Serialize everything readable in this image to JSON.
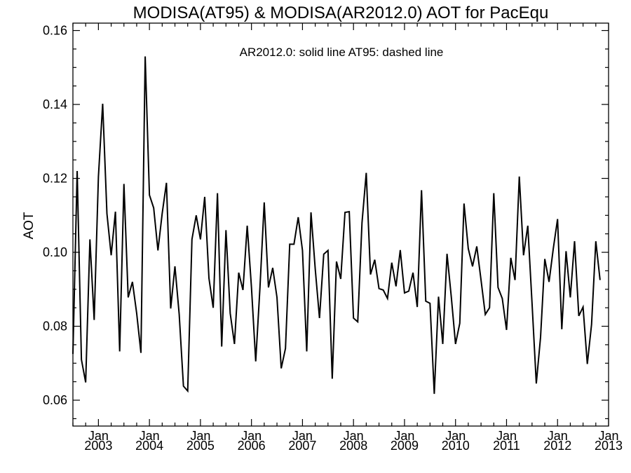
{
  "chart_data": {
    "type": "line",
    "title": "MODISA(AT95) & MODISA(AR2012.0)  AOT for PacEqu",
    "annotation": "AR2012.0: solid line   AT95: dashed line",
    "xlabel": "",
    "ylabel": "AOT",
    "ylim": [
      0.053,
      0.162
    ],
    "yticks": [
      0.06,
      0.08,
      0.1,
      0.12,
      0.14,
      0.16
    ],
    "ytick_labels": [
      "0.06",
      "0.08",
      "0.10",
      "0.12",
      "0.14",
      "0.16"
    ],
    "x_start": "2002-07",
    "xlim": [
      "2002-07",
      "2013-01"
    ],
    "xticks": [
      {
        "month": "Jan",
        "year": "2003",
        "date": "2003-01"
      },
      {
        "month": "Jan",
        "year": "2004",
        "date": "2004-01"
      },
      {
        "month": "Jan",
        "year": "2005",
        "date": "2005-01"
      },
      {
        "month": "Jan",
        "year": "2006",
        "date": "2006-01"
      },
      {
        "month": "Jan",
        "year": "2007",
        "date": "2007-01"
      },
      {
        "month": "Jan",
        "year": "2008",
        "date": "2008-01"
      },
      {
        "month": "Jan",
        "year": "2009",
        "date": "2009-01"
      },
      {
        "month": "Jan",
        "year": "2010",
        "date": "2010-01"
      },
      {
        "month": "Jan",
        "year": "2011",
        "date": "2011-01"
      },
      {
        "month": "Jan",
        "year": "2012",
        "date": "2012-01"
      },
      {
        "month": "Jan",
        "year": "2013",
        "date": "2013-01"
      }
    ],
    "grid": false,
    "series": [
      {
        "style": "solid",
        "color": "#000000",
        "values": [
          0.0725,
          0.122,
          0.071,
          0.0648,
          0.1035,
          0.0817,
          0.1205,
          0.1402,
          0.1105,
          0.0992,
          0.111,
          0.0732,
          0.1185,
          0.0878,
          0.092,
          0.0835,
          0.0728,
          0.153,
          0.1155,
          0.112,
          0.1005,
          0.1105,
          0.1188,
          0.0848,
          0.0962,
          0.0832,
          0.0638,
          0.0625,
          0.1035,
          0.11,
          0.1035,
          0.115,
          0.093,
          0.085,
          0.116,
          0.0745,
          0.106,
          0.0835,
          0.0752,
          0.0945,
          0.0898,
          0.1072,
          0.0905,
          0.0705,
          0.0905,
          0.1135,
          0.0905,
          0.0958,
          0.0878,
          0.0686,
          0.074,
          0.1022,
          0.1022,
          0.1095,
          0.1005,
          0.0732,
          0.1108,
          0.0955,
          0.0822,
          0.0995,
          0.1005,
          0.0658,
          0.0975,
          0.0928,
          0.1108,
          0.111,
          0.0822,
          0.0812,
          0.108,
          0.1215,
          0.094,
          0.098,
          0.0902,
          0.0898,
          0.0875,
          0.0972,
          0.0908,
          0.1006,
          0.089,
          0.0895,
          0.0945,
          0.0852,
          0.1168,
          0.0868,
          0.0862,
          0.0617,
          0.088,
          0.0752,
          0.0996,
          0.088,
          0.0752,
          0.0808,
          0.1132,
          0.101,
          0.0962,
          0.1016,
          0.0925,
          0.0832,
          0.085,
          0.116,
          0.0905,
          0.0875,
          0.079,
          0.0985,
          0.0925,
          0.1205,
          0.0992,
          0.1072,
          0.0862,
          0.0645,
          0.077,
          0.0982,
          0.092,
          0.101,
          0.109,
          0.0792,
          0.1003,
          0.0878,
          0.103,
          0.0828,
          0.0852,
          0.0698,
          0.0805,
          0.103,
          0.0925
        ]
      }
    ]
  }
}
